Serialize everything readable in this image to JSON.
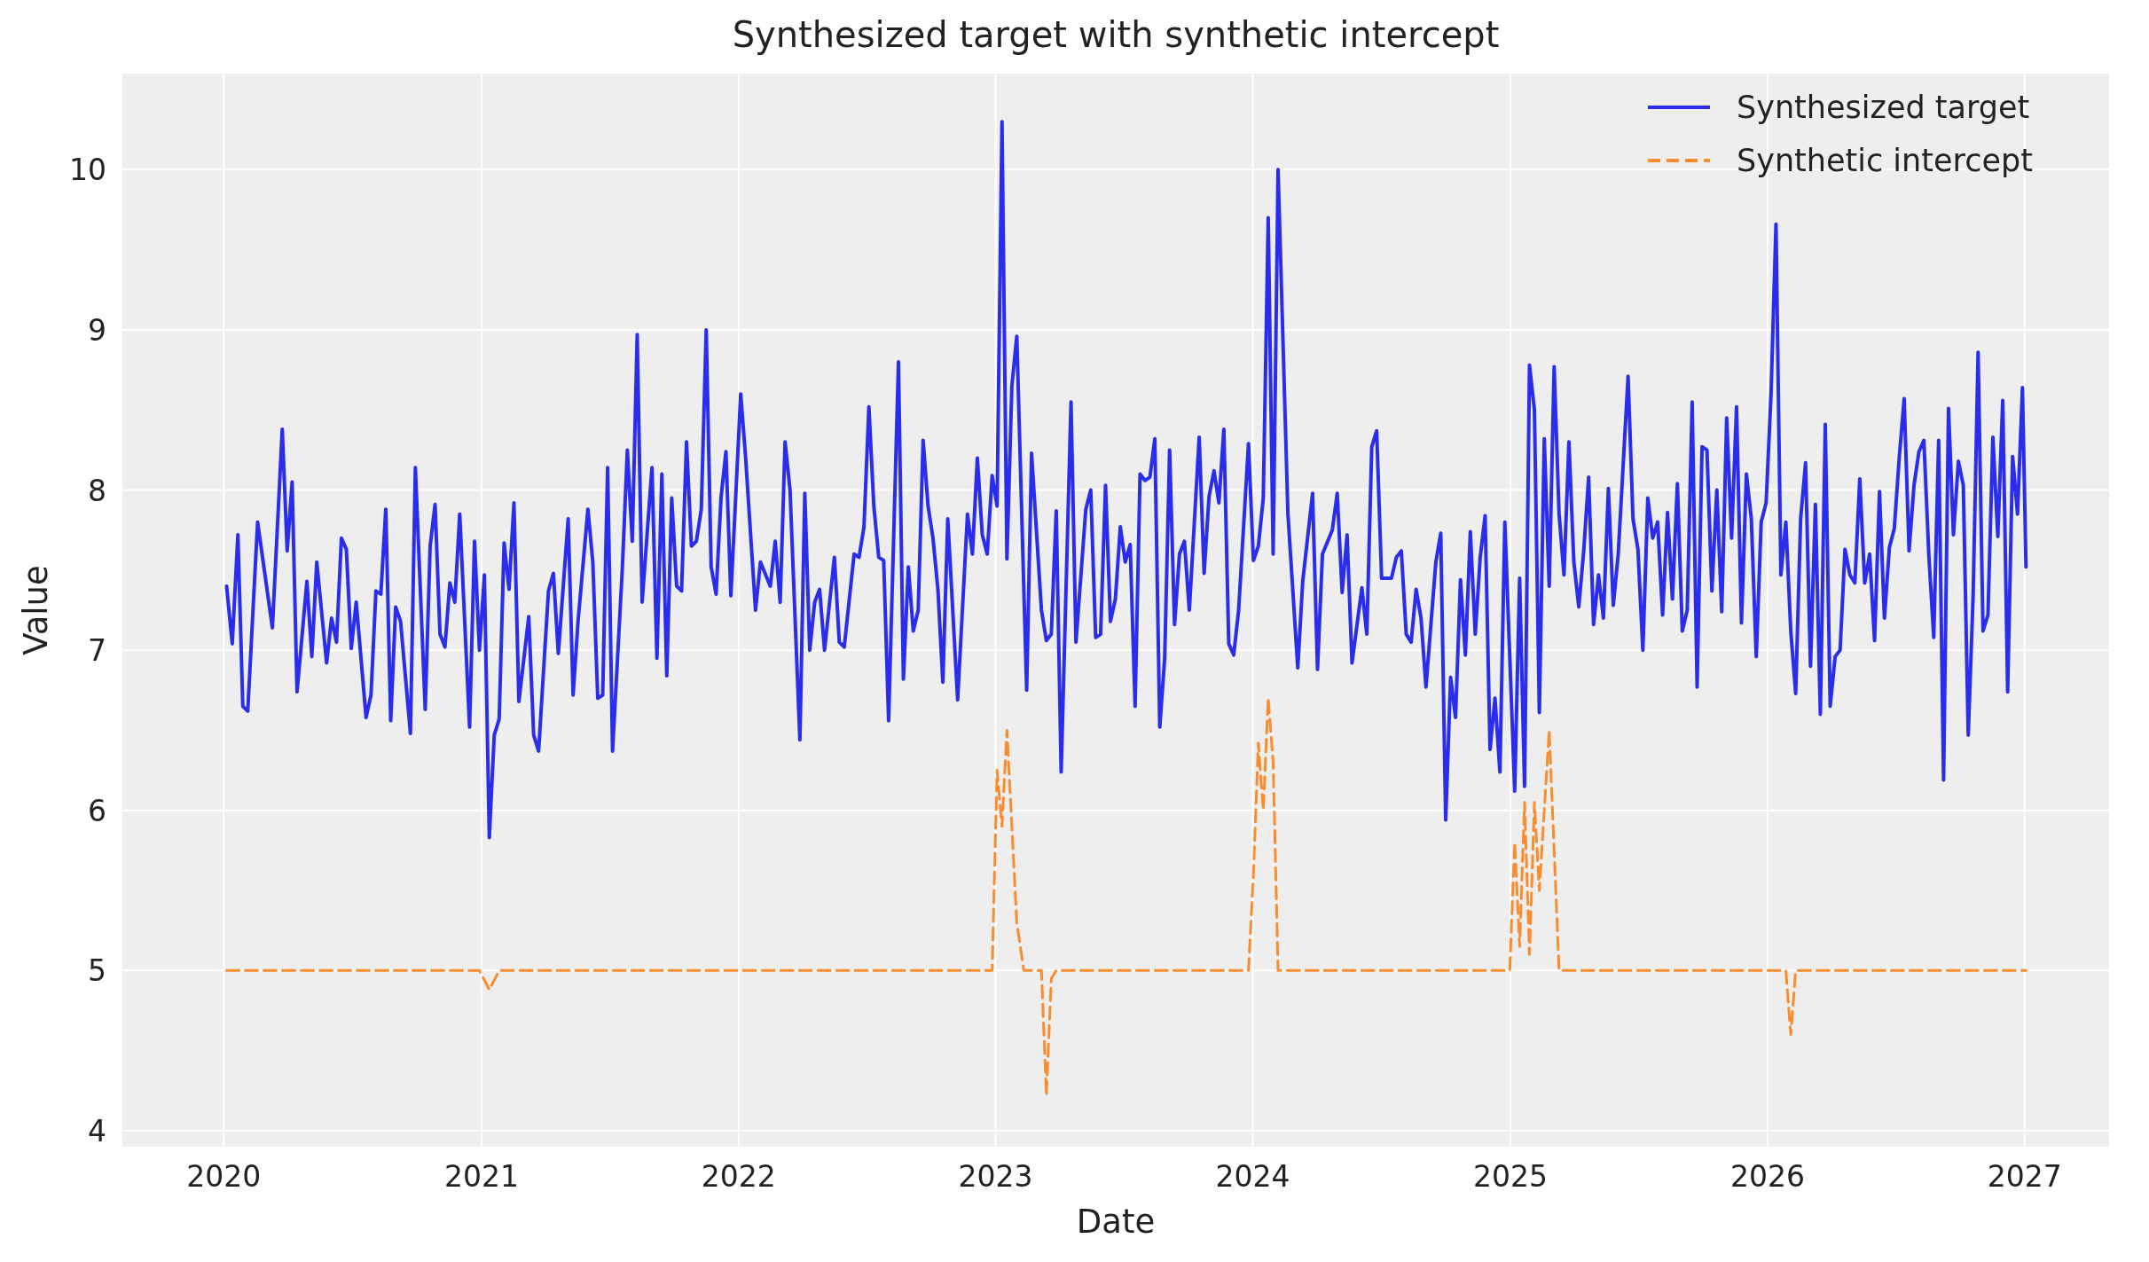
{
  "chart_data": {
    "type": "line",
    "title": "Synthesized target with synthetic intercept",
    "xlabel": "Date",
    "ylabel": "Value",
    "xlim": [
      "2019-08-10",
      "2027-05-01"
    ],
    "xticks": [
      "2020",
      "2021",
      "2022",
      "2023",
      "2024",
      "2025",
      "2026",
      "2027"
    ],
    "ylim": [
      3.9,
      10.6
    ],
    "yticks": [
      4,
      5,
      6,
      7,
      8,
      9,
      10
    ],
    "grid": true,
    "legend": "top right",
    "series": [
      {
        "name": "Synthesized target",
        "color": "#2a2eec",
        "line_style": "solid",
        "x": [
          "2020-01-05",
          "2020-01-13",
          "2020-01-21",
          "2020-01-28",
          "2020-02-04",
          "2020-02-18",
          "2020-03-10",
          "2020-03-24",
          "2020-03-31",
          "2020-04-07",
          "2020-04-14",
          "2020-04-28",
          "2020-05-05",
          "2020-05-12",
          "2020-05-26",
          "2020-06-02",
          "2020-06-09",
          "2020-06-16",
          "2020-06-23",
          "2020-06-30",
          "2020-07-07",
          "2020-07-21",
          "2020-07-28",
          "2020-08-04",
          "2020-08-11",
          "2020-08-18",
          "2020-08-25",
          "2020-09-01",
          "2020-09-08",
          "2020-09-22",
          "2020-09-29",
          "2020-10-13",
          "2020-10-20",
          "2020-10-27",
          "2020-11-03",
          "2020-11-10",
          "2020-11-17",
          "2020-11-24",
          "2020-12-01",
          "2020-12-15",
          "2020-12-22",
          "2020-12-29",
          "2021-01-05",
          "2021-01-12",
          "2021-01-19",
          "2021-01-26",
          "2021-02-02",
          "2021-02-09",
          "2021-02-16",
          "2021-02-23",
          "2021-03-09",
          "2021-03-16",
          "2021-03-23",
          "2021-04-06",
          "2021-04-13",
          "2021-04-20",
          "2021-05-04",
          "2021-05-11",
          "2021-05-18",
          "2021-06-01",
          "2021-06-08",
          "2021-06-15",
          "2021-06-22",
          "2021-06-29",
          "2021-07-06",
          "2021-07-20",
          "2021-07-27",
          "2021-08-03",
          "2021-08-10",
          "2021-08-17",
          "2021-08-31",
          "2021-09-07",
          "2021-09-14",
          "2021-09-21",
          "2021-09-28",
          "2021-10-05",
          "2021-10-12",
          "2021-10-19",
          "2021-10-26",
          "2021-11-02",
          "2021-11-09",
          "2021-11-16",
          "2021-11-23",
          "2021-11-30",
          "2021-12-07",
          "2021-12-14",
          "2021-12-21",
          "2022-01-04",
          "2022-01-11",
          "2022-01-25",
          "2022-02-01",
          "2022-02-15",
          "2022-02-22",
          "2022-03-01",
          "2022-03-08",
          "2022-03-15",
          "2022-03-29",
          "2022-04-05",
          "2022-04-12",
          "2022-04-19",
          "2022-04-26",
          "2022-05-03",
          "2022-05-17",
          "2022-05-24",
          "2022-05-31",
          "2022-06-14",
          "2022-06-21",
          "2022-06-28",
          "2022-07-05",
          "2022-07-12",
          "2022-07-19",
          "2022-07-26",
          "2022-08-02",
          "2022-08-16",
          "2022-08-23",
          "2022-08-30",
          "2022-09-06",
          "2022-09-13",
          "2022-09-20",
          "2022-09-27",
          "2022-10-04",
          "2022-10-11",
          "2022-10-18",
          "2022-10-25",
          "2022-11-08",
          "2022-11-22",
          "2022-11-29",
          "2022-12-06",
          "2022-12-13",
          "2022-12-20",
          "2022-12-27",
          "2023-01-03",
          "2023-01-10",
          "2023-01-17",
          "2023-01-24",
          "2023-01-31",
          "2023-02-14",
          "2023-02-21",
          "2023-03-07",
          "2023-03-14",
          "2023-03-21",
          "2023-03-28",
          "2023-04-04",
          "2023-04-18",
          "2023-04-25",
          "2023-05-09",
          "2023-05-16",
          "2023-05-23",
          "2023-05-30",
          "2023-06-06",
          "2023-06-13",
          "2023-06-20",
          "2023-06-27",
          "2023-07-04",
          "2023-07-11",
          "2023-07-18",
          "2023-07-25",
          "2023-08-01",
          "2023-08-08",
          "2023-08-15",
          "2023-08-22",
          "2023-08-29",
          "2023-09-05",
          "2023-09-12",
          "2023-09-19",
          "2023-09-26",
          "2023-10-03",
          "2023-10-17",
          "2023-10-24",
          "2023-10-31",
          "2023-11-07",
          "2023-11-14",
          "2023-11-21",
          "2023-11-28",
          "2023-12-05",
          "2023-12-12",
          "2023-12-26",
          "2024-01-02",
          "2024-01-09",
          "2024-01-16",
          "2024-01-23",
          "2024-01-30",
          "2024-02-06",
          "2024-02-20",
          "2024-03-05",
          "2024-03-12",
          "2024-03-26",
          "2024-04-02",
          "2024-04-09",
          "2024-04-23",
          "2024-04-30",
          "2024-05-07",
          "2024-05-14",
          "2024-05-21",
          "2024-06-04",
          "2024-06-11",
          "2024-06-18",
          "2024-06-25",
          "2024-07-02",
          "2024-07-16",
          "2024-07-23",
          "2024-07-30",
          "2024-08-06",
          "2024-08-13",
          "2024-08-20",
          "2024-08-27",
          "2024-09-03",
          "2024-09-17",
          "2024-09-24",
          "2024-10-01",
          "2024-10-08",
          "2024-10-15",
          "2024-10-22",
          "2024-10-29",
          "2024-11-05",
          "2024-11-12",
          "2024-11-19",
          "2024-11-26",
          "2024-12-03",
          "2024-12-10",
          "2024-12-17",
          "2024-12-24",
          "2025-01-07",
          "2025-01-14",
          "2025-01-21",
          "2025-01-28",
          "2025-02-04",
          "2025-02-11",
          "2025-02-18",
          "2025-02-25",
          "2025-03-04",
          "2025-03-11",
          "2025-03-18",
          "2025-03-25",
          "2025-04-01",
          "2025-04-08",
          "2025-04-15",
          "2025-04-22",
          "2025-04-29",
          "2025-05-06",
          "2025-05-13",
          "2025-05-20",
          "2025-05-27",
          "2025-06-03",
          "2025-06-17",
          "2025-06-24",
          "2025-07-01",
          "2025-07-08",
          "2025-07-15",
          "2025-07-22",
          "2025-07-29",
          "2025-08-05",
          "2025-08-12",
          "2025-08-19",
          "2025-08-26",
          "2025-09-02",
          "2025-09-09",
          "2025-09-16",
          "2025-09-23",
          "2025-09-30",
          "2025-10-07",
          "2025-10-14",
          "2025-10-21",
          "2025-10-28",
          "2025-11-04",
          "2025-11-11",
          "2025-11-18",
          "2025-11-25",
          "2025-12-02",
          "2025-12-09",
          "2025-12-16",
          "2025-12-23",
          "2025-12-30",
          "2026-01-06",
          "2026-01-13",
          "2026-01-20",
          "2026-01-27",
          "2026-02-03",
          "2026-02-10",
          "2026-02-17",
          "2026-02-24",
          "2026-03-03",
          "2026-03-10",
          "2026-03-17",
          "2026-03-24",
          "2026-03-31",
          "2026-04-07",
          "2026-04-14",
          "2026-04-21",
          "2026-04-28",
          "2026-05-05",
          "2026-05-12",
          "2026-05-19",
          "2026-05-26",
          "2026-06-02",
          "2026-06-09",
          "2026-06-16",
          "2026-06-23",
          "2026-06-30",
          "2026-07-07",
          "2026-07-14",
          "2026-07-21",
          "2026-07-28",
          "2026-08-04",
          "2026-08-11",
          "2026-08-18",
          "2026-08-25",
          "2026-09-01",
          "2026-09-08",
          "2026-09-15",
          "2026-09-22",
          "2026-09-29",
          "2026-10-06",
          "2026-10-13",
          "2026-10-20",
          "2026-10-27",
          "2026-11-03",
          "2026-11-10",
          "2026-11-17",
          "2026-11-24",
          "2026-12-01",
          "2026-12-08",
          "2026-12-15",
          "2026-12-22",
          "2026-12-29",
          "2027-01-03"
        ],
        "values": [
          7.4,
          7.04,
          7.72,
          6.65,
          6.62,
          7.8,
          7.14,
          8.38,
          7.62,
          8.05,
          6.74,
          7.43,
          6.96,
          7.55,
          6.92,
          7.2,
          7.05,
          7.7,
          7.63,
          7.01,
          7.3,
          6.58,
          6.72,
          7.37,
          7.35,
          7.88,
          6.56,
          7.27,
          7.18,
          6.48,
          8.14,
          6.63,
          7.65,
          7.91,
          7.1,
          7.02,
          7.42,
          7.3,
          7.85,
          6.52,
          7.68,
          7.0,
          7.47,
          5.83,
          6.47,
          6.57,
          7.67,
          7.38,
          7.92,
          6.68,
          7.21,
          6.47,
          6.37,
          7.37,
          7.48,
          6.98,
          7.82,
          6.72,
          7.18,
          7.88,
          7.55,
          6.7,
          6.72,
          8.14,
          6.37,
          7.52,
          8.25,
          7.68,
          8.97,
          7.3,
          8.14,
          6.95,
          8.1,
          6.84,
          7.95,
          7.4,
          7.37,
          8.3,
          7.65,
          7.68,
          7.88,
          9.0,
          7.52,
          7.35,
          7.95,
          8.24,
          7.34,
          8.6,
          8.2,
          7.25,
          7.55,
          7.4,
          7.68,
          7.3,
          8.3,
          8.0,
          6.44,
          7.98,
          7.0,
          7.3,
          7.38,
          7.0,
          7.58,
          7.05,
          7.02,
          7.6,
          7.58,
          7.77,
          8.52,
          7.9,
          7.58,
          7.56,
          6.56,
          8.8,
          6.82,
          7.52,
          7.12,
          7.25,
          8.31,
          7.9,
          7.7,
          7.38,
          6.8,
          7.82,
          6.69,
          7.85,
          7.6,
          8.2,
          7.72,
          7.6,
          8.09,
          7.9,
          10.3,
          7.57,
          8.65,
          8.96,
          6.75,
          8.23,
          7.25,
          7.06,
          7.1,
          7.87,
          6.24,
          8.55,
          7.05,
          7.88,
          8.0,
          7.08,
          7.1,
          8.03,
          7.18,
          7.32,
          7.77,
          7.55,
          7.66,
          6.65,
          8.1,
          8.06,
          8.08,
          8.32,
          6.52,
          6.95,
          8.25,
          7.16,
          7.6,
          7.68,
          7.25,
          8.33,
          7.48,
          7.96,
          8.12,
          7.92,
          8.38,
          7.04,
          6.97,
          7.25,
          8.29,
          7.56,
          7.65,
          7.95,
          9.7,
          7.6,
          10.0,
          7.85,
          6.89,
          7.43,
          7.98,
          6.88,
          7.6,
          7.75,
          7.98,
          7.36,
          7.72,
          6.92,
          7.39,
          7.1,
          8.27,
          8.37,
          7.45,
          7.45,
          7.58,
          7.62,
          7.1,
          7.05,
          7.38,
          7.2,
          6.77,
          7.55,
          7.73,
          5.94,
          6.83,
          6.58,
          7.44,
          6.97,
          7.74,
          7.1,
          7.58,
          7.84,
          6.38,
          6.7,
          6.24,
          7.8,
          6.12,
          7.45,
          6.15,
          8.78,
          8.5,
          6.61,
          8.32,
          7.4,
          8.77,
          7.85,
          7.47,
          8.3,
          7.55,
          7.27,
          7.62,
          8.08,
          7.16,
          7.47,
          7.2,
          8.01,
          7.28,
          7.6,
          8.71,
          7.82,
          7.63,
          7.0,
          7.95,
          7.7,
          7.8,
          7.22,
          7.86,
          7.32,
          8.04,
          7.12,
          7.25,
          8.55,
          6.77,
          8.27,
          8.25,
          7.37,
          8.0,
          7.24,
          8.45,
          7.7,
          8.52,
          7.17,
          8.1,
          7.82,
          6.96,
          7.8,
          7.92,
          8.6,
          9.66,
          7.47,
          7.8,
          7.12,
          6.73,
          7.82,
          8.17,
          6.9,
          7.91,
          6.6,
          8.41,
          6.65,
          6.96,
          7.0,
          7.63,
          7.47,
          7.42,
          8.07,
          7.42,
          7.6,
          7.06,
          7.99,
          7.2,
          7.64,
          7.76,
          8.2,
          8.57,
          7.62,
          8.03,
          8.24,
          8.31,
          7.6,
          7.08,
          8.31,
          6.19,
          8.51,
          7.72,
          8.18,
          8.03,
          6.47,
          7.35,
          8.86,
          7.12,
          7.22,
          8.33,
          7.71,
          8.56,
          6.74,
          8.21,
          7.85,
          8.64,
          7.52
        ]
      },
      {
        "name": "Synthetic intercept",
        "color": "#fa8c2e",
        "line_style": "dashed",
        "x": [
          "2020-01-05",
          "2020-12-29",
          "2021-01-12",
          "2021-01-26",
          "2022-12-27",
          "2023-01-03",
          "2023-01-10",
          "2023-01-17",
          "2023-01-31",
          "2023-02-10",
          "2023-03-07",
          "2023-03-14",
          "2023-03-21",
          "2023-03-28",
          "2023-12-26",
          "2024-01-02",
          "2024-01-09",
          "2024-01-16",
          "2024-01-23",
          "2024-01-30",
          "2024-02-06",
          "2024-12-31",
          "2025-01-07",
          "2025-01-14",
          "2025-01-21",
          "2025-01-28",
          "2025-02-04",
          "2025-02-11",
          "2025-02-25",
          "2025-03-11",
          "2026-01-27",
          "2026-02-03",
          "2026-02-10",
          "2027-01-03"
        ],
        "values": [
          5,
          5,
          4.88,
          5,
          5,
          6.25,
          5.9,
          6.5,
          5.3,
          5.0,
          5.0,
          4.22,
          4.95,
          5.0,
          5.0,
          5.6,
          6.42,
          6.0,
          6.7,
          6.3,
          5.0,
          5.0,
          5.8,
          5.15,
          6.05,
          5.1,
          6.05,
          5.5,
          6.5,
          5.0,
          5.0,
          4.6,
          5.0,
          5.0
        ]
      }
    ]
  }
}
